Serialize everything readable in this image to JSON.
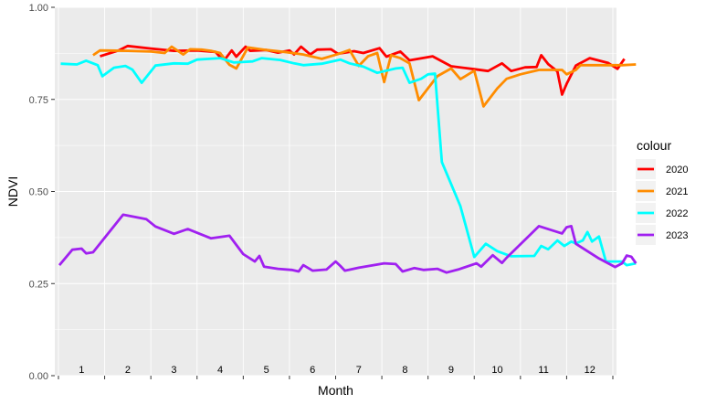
{
  "chart_data": {
    "type": "line",
    "xlabel": "Month",
    "ylabel": "NDVI",
    "ylim": [
      0,
      1
    ],
    "xlim": [
      0,
      12
    ],
    "y_ticks": [
      "0.00",
      "0.25",
      "0.50",
      "0.75",
      "1.00"
    ],
    "month_labels": [
      "1",
      "2",
      "3",
      "4",
      "5",
      "6",
      "7",
      "8",
      "9",
      "10",
      "11",
      "12"
    ],
    "grid": true,
    "legend": {
      "title": "colour",
      "placement": "right"
    },
    "series": [
      {
        "name": "2020",
        "color": "#ff0000",
        "points": [
          [
            0.9,
            0.867
          ],
          [
            1.3,
            0.883
          ],
          [
            1.5,
            0.895
          ],
          [
            2.0,
            0.888
          ],
          [
            2.5,
            0.882
          ],
          [
            3.0,
            0.883
          ],
          [
            3.4,
            0.879
          ],
          [
            3.5,
            0.865
          ],
          [
            3.6,
            0.858
          ],
          [
            3.75,
            0.883
          ],
          [
            3.85,
            0.866
          ],
          [
            4.05,
            0.893
          ],
          [
            4.15,
            0.882
          ],
          [
            4.5,
            0.884
          ],
          [
            4.75,
            0.877
          ],
          [
            5.0,
            0.883
          ],
          [
            5.1,
            0.872
          ],
          [
            5.25,
            0.893
          ],
          [
            5.45,
            0.872
          ],
          [
            5.6,
            0.885
          ],
          [
            5.9,
            0.886
          ],
          [
            6.05,
            0.874
          ],
          [
            6.4,
            0.881
          ],
          [
            6.6,
            0.876
          ],
          [
            6.95,
            0.889
          ],
          [
            7.1,
            0.866
          ],
          [
            7.4,
            0.88
          ],
          [
            7.6,
            0.856
          ],
          [
            8.1,
            0.867
          ],
          [
            8.5,
            0.84
          ],
          [
            9.0,
            0.832
          ],
          [
            9.3,
            0.827
          ],
          [
            9.6,
            0.848
          ],
          [
            9.8,
            0.827
          ],
          [
            10.1,
            0.837
          ],
          [
            10.35,
            0.838
          ],
          [
            10.45,
            0.87
          ],
          [
            10.6,
            0.846
          ],
          [
            10.8,
            0.826
          ],
          [
            10.9,
            0.763
          ],
          [
            11.0,
            0.792
          ],
          [
            11.2,
            0.842
          ],
          [
            11.5,
            0.862
          ],
          [
            11.9,
            0.849
          ],
          [
            12.1,
            0.833
          ],
          [
            12.25,
            0.86
          ]
        ]
      },
      {
        "name": "2021",
        "color": "#ff8c00",
        "points": [
          [
            0.75,
            0.87
          ],
          [
            0.9,
            0.883
          ],
          [
            1.5,
            0.882
          ],
          [
            2.0,
            0.88
          ],
          [
            2.3,
            0.876
          ],
          [
            2.45,
            0.893
          ],
          [
            2.7,
            0.872
          ],
          [
            2.85,
            0.886
          ],
          [
            3.1,
            0.885
          ],
          [
            3.3,
            0.882
          ],
          [
            3.5,
            0.876
          ],
          [
            3.7,
            0.844
          ],
          [
            3.85,
            0.834
          ],
          [
            4.1,
            0.891
          ],
          [
            4.5,
            0.884
          ],
          [
            4.95,
            0.878
          ],
          [
            5.3,
            0.872
          ],
          [
            5.7,
            0.86
          ],
          [
            6.05,
            0.873
          ],
          [
            6.3,
            0.884
          ],
          [
            6.5,
            0.841
          ],
          [
            6.7,
            0.867
          ],
          [
            6.9,
            0.876
          ],
          [
            7.05,
            0.797
          ],
          [
            7.2,
            0.87
          ],
          [
            7.4,
            0.862
          ],
          [
            7.6,
            0.848
          ],
          [
            7.8,
            0.748
          ],
          [
            8.2,
            0.813
          ],
          [
            8.5,
            0.834
          ],
          [
            8.7,
            0.805
          ],
          [
            9.0,
            0.828
          ],
          [
            9.2,
            0.731
          ],
          [
            9.5,
            0.78
          ],
          [
            9.7,
            0.806
          ],
          [
            10.0,
            0.818
          ],
          [
            10.4,
            0.83
          ],
          [
            10.9,
            0.83
          ],
          [
            11.0,
            0.818
          ],
          [
            11.2,
            0.83
          ],
          [
            11.3,
            0.843
          ],
          [
            12.2,
            0.843
          ],
          [
            12.5,
            0.845
          ]
        ]
      },
      {
        "name": "2022",
        "color": "#00ffff",
        "points": [
          [
            0.05,
            0.847
          ],
          [
            0.4,
            0.845
          ],
          [
            0.6,
            0.855
          ],
          [
            0.85,
            0.843
          ],
          [
            0.95,
            0.813
          ],
          [
            1.2,
            0.836
          ],
          [
            1.45,
            0.841
          ],
          [
            1.6,
            0.831
          ],
          [
            1.8,
            0.795
          ],
          [
            2.1,
            0.842
          ],
          [
            2.5,
            0.848
          ],
          [
            2.8,
            0.847
          ],
          [
            3.0,
            0.858
          ],
          [
            3.5,
            0.862
          ],
          [
            3.8,
            0.85
          ],
          [
            4.2,
            0.853
          ],
          [
            4.4,
            0.862
          ],
          [
            4.8,
            0.857
          ],
          [
            5.1,
            0.848
          ],
          [
            5.3,
            0.843
          ],
          [
            5.7,
            0.847
          ],
          [
            6.1,
            0.858
          ],
          [
            6.3,
            0.848
          ],
          [
            6.6,
            0.839
          ],
          [
            6.9,
            0.822
          ],
          [
            7.3,
            0.834
          ],
          [
            7.45,
            0.836
          ],
          [
            7.6,
            0.795
          ],
          [
            7.85,
            0.806
          ],
          [
            8.0,
            0.818
          ],
          [
            8.15,
            0.82
          ],
          [
            8.3,
            0.58
          ],
          [
            8.7,
            0.46
          ],
          [
            9.0,
            0.322
          ],
          [
            9.25,
            0.358
          ],
          [
            9.5,
            0.338
          ],
          [
            9.8,
            0.324
          ],
          [
            10.3,
            0.325
          ],
          [
            10.45,
            0.352
          ],
          [
            10.6,
            0.343
          ],
          [
            10.8,
            0.367
          ],
          [
            10.95,
            0.352
          ],
          [
            11.1,
            0.364
          ],
          [
            11.2,
            0.359
          ],
          [
            11.35,
            0.367
          ],
          [
            11.45,
            0.39
          ],
          [
            11.55,
            0.364
          ],
          [
            11.7,
            0.378
          ],
          [
            11.85,
            0.31
          ],
          [
            12.2,
            0.31
          ],
          [
            12.3,
            0.3
          ],
          [
            12.5,
            0.305
          ]
        ]
      },
      {
        "name": "2023",
        "color": "#a020f0",
        "points": [
          [
            0.02,
            0.3
          ],
          [
            0.3,
            0.342
          ],
          [
            0.5,
            0.345
          ],
          [
            0.6,
            0.332
          ],
          [
            0.75,
            0.335
          ],
          [
            1.4,
            0.437
          ],
          [
            1.9,
            0.425
          ],
          [
            2.1,
            0.405
          ],
          [
            2.5,
            0.385
          ],
          [
            2.8,
            0.398
          ],
          [
            3.3,
            0.373
          ],
          [
            3.7,
            0.38
          ],
          [
            4.0,
            0.33
          ],
          [
            4.25,
            0.31
          ],
          [
            4.35,
            0.325
          ],
          [
            4.45,
            0.296
          ],
          [
            4.75,
            0.29
          ],
          [
            5.05,
            0.287
          ],
          [
            5.2,
            0.283
          ],
          [
            5.3,
            0.3
          ],
          [
            5.5,
            0.285
          ],
          [
            5.8,
            0.288
          ],
          [
            6.0,
            0.31
          ],
          [
            6.1,
            0.298
          ],
          [
            6.2,
            0.285
          ],
          [
            6.5,
            0.293
          ],
          [
            7.05,
            0.305
          ],
          [
            7.3,
            0.303
          ],
          [
            7.45,
            0.283
          ],
          [
            7.7,
            0.292
          ],
          [
            7.9,
            0.287
          ],
          [
            8.2,
            0.29
          ],
          [
            8.4,
            0.28
          ],
          [
            8.65,
            0.288
          ],
          [
            9.05,
            0.305
          ],
          [
            9.15,
            0.296
          ],
          [
            9.4,
            0.327
          ],
          [
            9.6,
            0.306
          ],
          [
            9.7,
            0.32
          ],
          [
            10.4,
            0.406
          ],
          [
            10.9,
            0.386
          ],
          [
            11.0,
            0.403
          ],
          [
            11.1,
            0.406
          ],
          [
            11.2,
            0.358
          ],
          [
            11.7,
            0.318
          ],
          [
            12.05,
            0.295
          ],
          [
            12.2,
            0.305
          ],
          [
            12.3,
            0.326
          ],
          [
            12.4,
            0.323
          ],
          [
            12.5,
            0.305
          ]
        ]
      }
    ]
  }
}
